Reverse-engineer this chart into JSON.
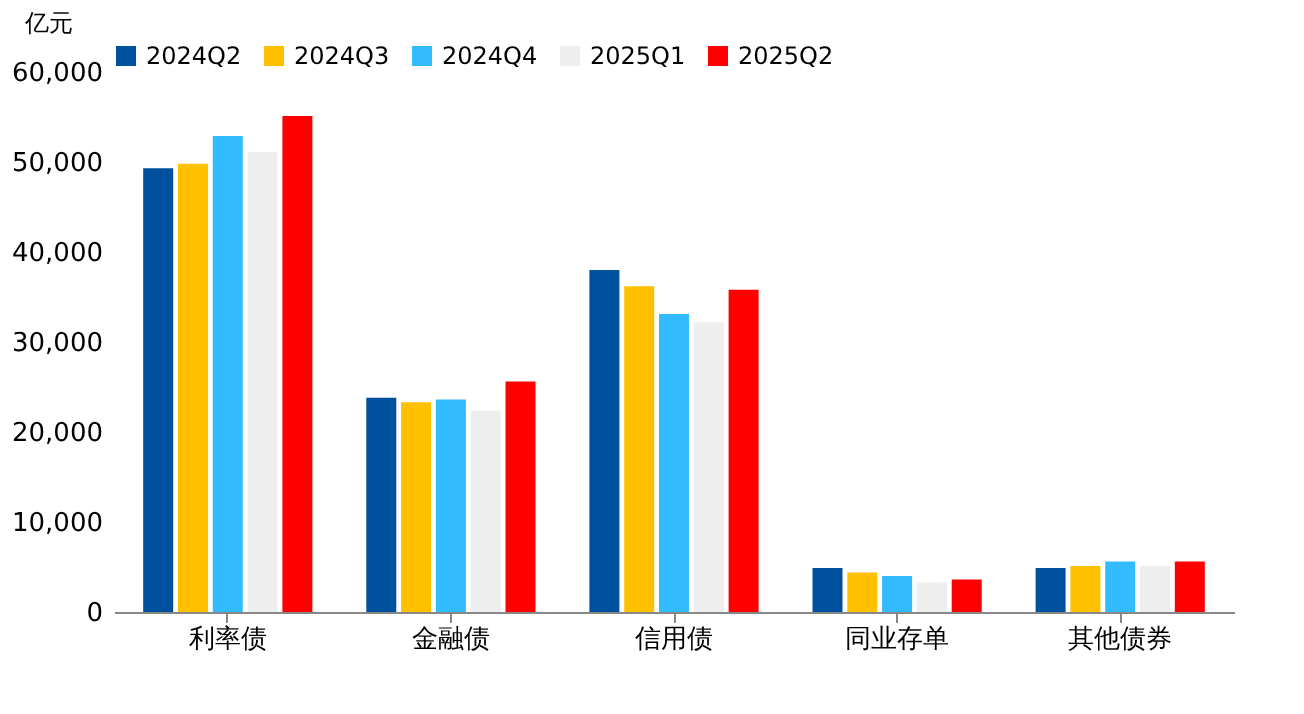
{
  "chart_data": {
    "type": "bar",
    "ylabel": "亿元",
    "categories": [
      "利率债",
      "金融债",
      "信用债",
      "同业存单",
      "其他债券"
    ],
    "series": [
      {
        "name": "2024Q2",
        "color": "#0050a0",
        "values": [
          49300,
          23800,
          38000,
          4900,
          4900
        ]
      },
      {
        "name": "2024Q3",
        "color": "#ffc000",
        "values": [
          49800,
          23300,
          36200,
          4400,
          5100
        ]
      },
      {
        "name": "2024Q4",
        "color": "#33bbff",
        "values": [
          52900,
          23600,
          33100,
          4000,
          5600
        ]
      },
      {
        "name": "2025Q1",
        "color": "#eeeeee",
        "values": [
          51100,
          22400,
          32200,
          3300,
          5100
        ]
      },
      {
        "name": "2025Q2",
        "color": "#ff0000",
        "values": [
          55100,
          25600,
          35800,
          3600,
          5600
        ]
      }
    ],
    "ylim": [
      0,
      60000
    ],
    "yticks": [
      0,
      {
        "value": 10000,
        "label": "10,000"
      },
      {
        "value": 20000,
        "label": "20,000"
      },
      {
        "value": 30000,
        "label": "30,000"
      },
      {
        "value": 40000,
        "label": "40,000"
      },
      {
        "value": 50000,
        "label": "50,000"
      },
      {
        "value": 60000,
        "label": "60,000"
      }
    ],
    "grid": false,
    "legend": "top"
  }
}
